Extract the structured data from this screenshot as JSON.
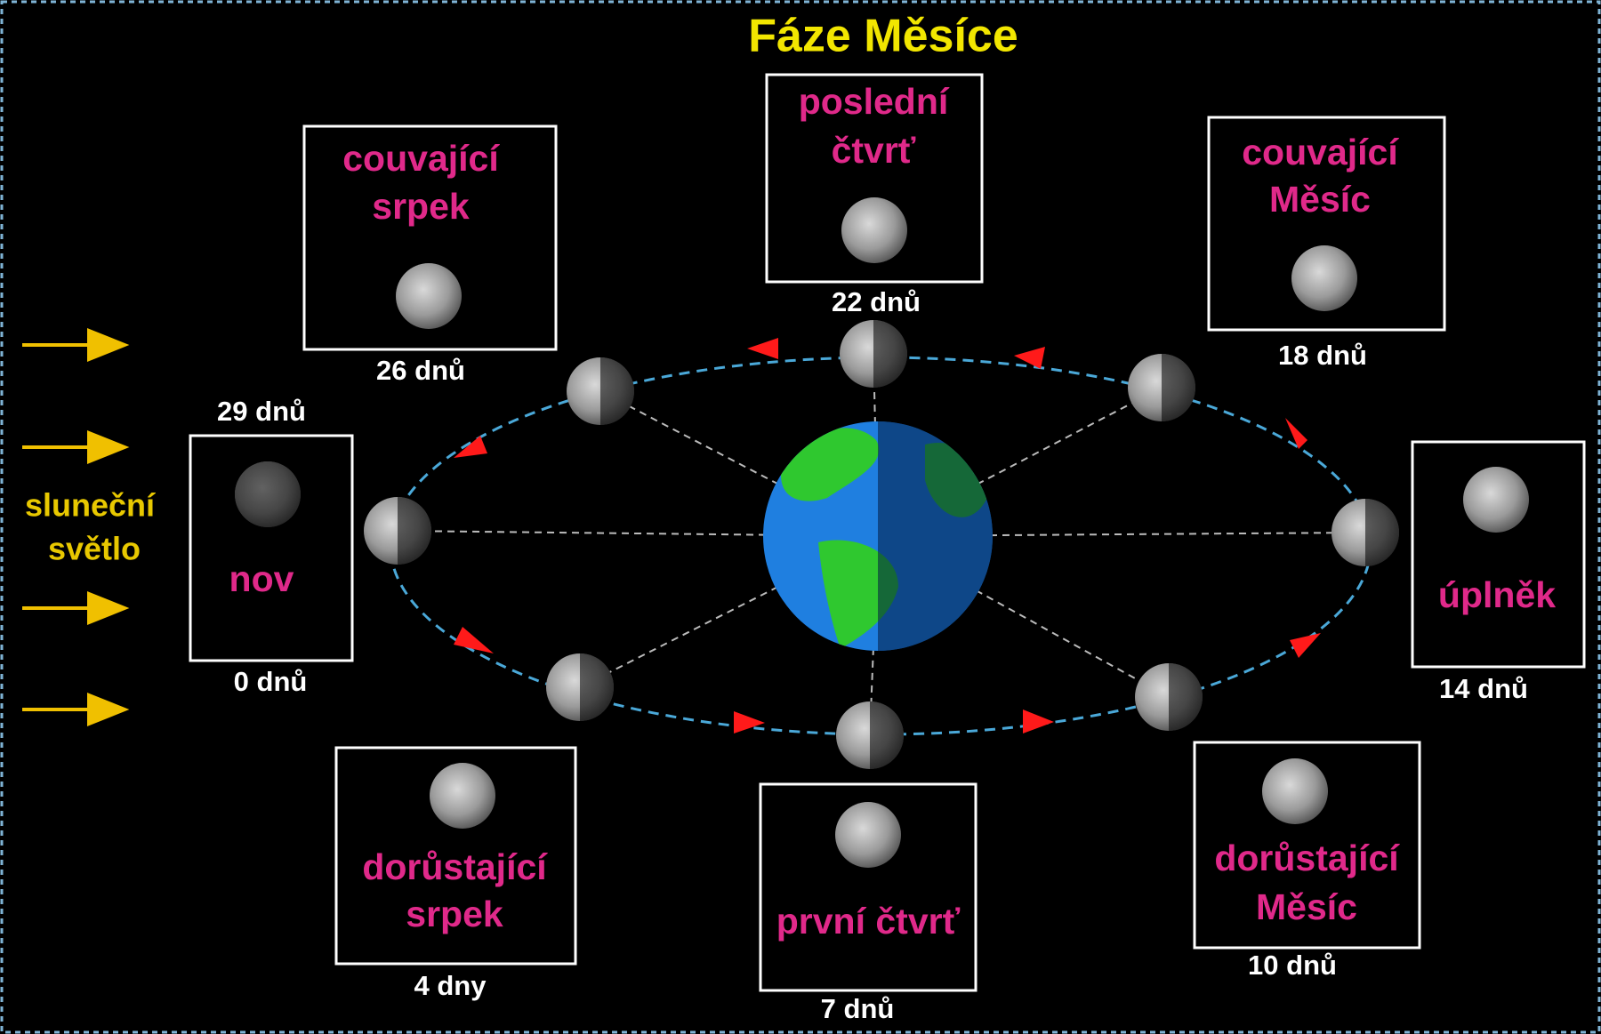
{
  "title": "Fáze Měsíce",
  "sunlight_label": [
    "sluneční",
    "světlo"
  ],
  "phases": [
    {
      "label": [
        "nov"
      ],
      "days": [
        "29 dnů",
        "0 dnů"
      ]
    },
    {
      "label": [
        "dorůstající",
        "srpek"
      ],
      "days": [
        "4 dny"
      ]
    },
    {
      "label": [
        "první čtvrť"
      ],
      "days": [
        "7 dnů"
      ]
    },
    {
      "label": [
        "dorůstající",
        "Měsíc"
      ],
      "days": [
        "10 dnů"
      ]
    },
    {
      "label": [
        "úplněk"
      ],
      "days": [
        "14 dnů"
      ]
    },
    {
      "label": [
        "couvající",
        "Měsíc"
      ],
      "days": [
        "18 dnů"
      ]
    },
    {
      "label": [
        "poslední",
        "čtvrť"
      ],
      "days": [
        "22 dnů"
      ]
    },
    {
      "label": [
        "couvající",
        "srpek"
      ],
      "days": [
        "26 dnů"
      ]
    }
  ]
}
